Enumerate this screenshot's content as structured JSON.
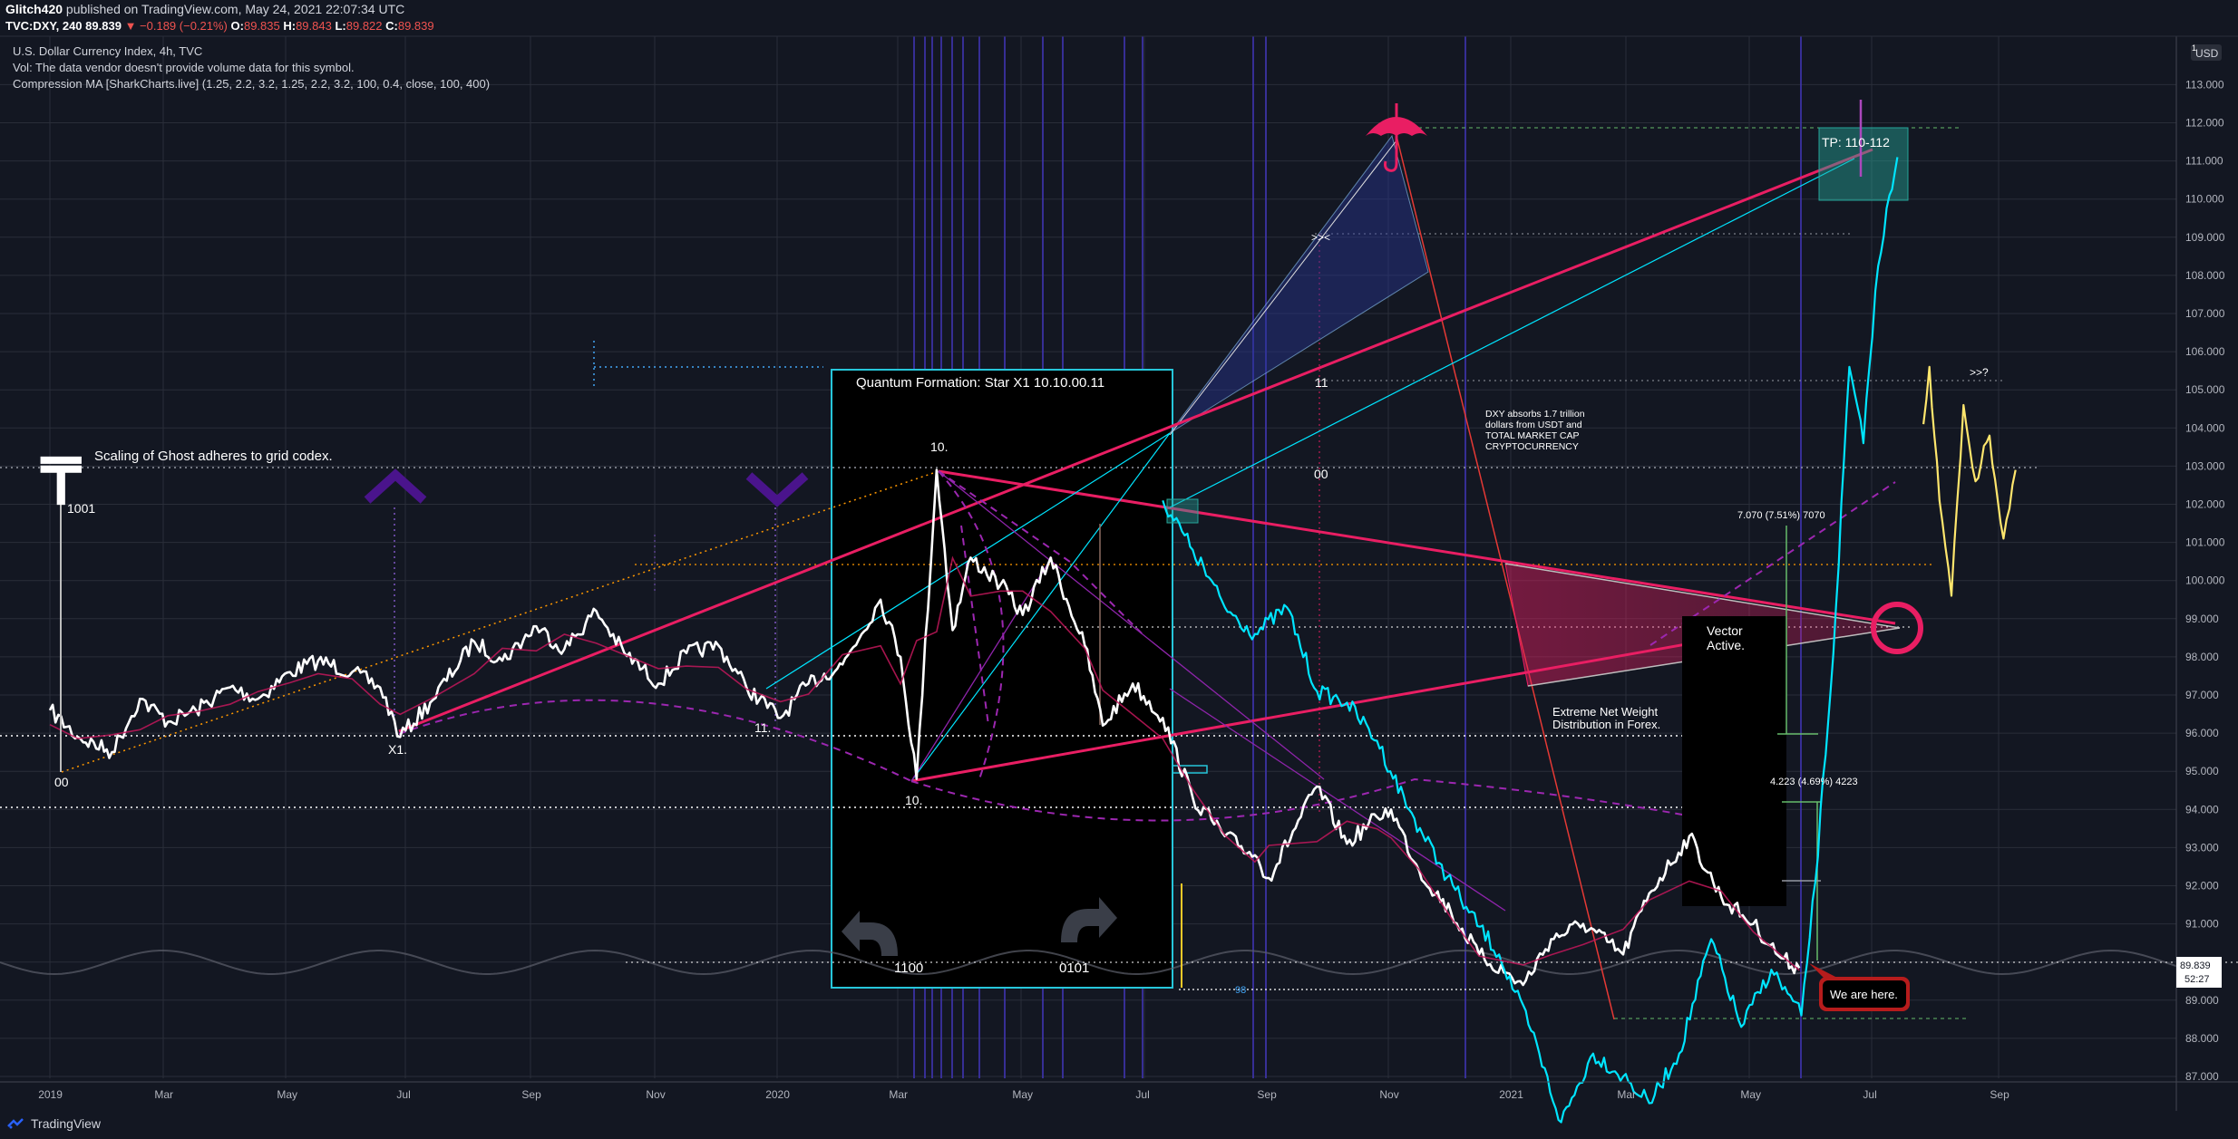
{
  "header": {
    "publisher": "Glitch420",
    "published_text": "published on TradingView.com, May 24, 2021 22:07:34 UTC",
    "symbol": "TVC:DXY, 240",
    "last": "89.839",
    "change": "▼ −0.189 (−0.21%)",
    "ohlc_o_label": "O:",
    "ohlc_o": "89.835",
    "ohlc_h_label": "H:",
    "ohlc_h": "89.843",
    "ohlc_l_label": "L:",
    "ohlc_l": "89.822",
    "ohlc_c_label": "C:",
    "ohlc_c": "89.839"
  },
  "indicators": {
    "title": "U.S. Dollar Currency Index, 4h, TVC",
    "vol": "Vol: The data vendor doesn't provide volume data for this symbol.",
    "cma": "Compression MA [SharkCharts.live] (1.25, 2.2, 3.2, 1.25, 2.2, 3.2, 100, 0.4, close, 100, 400)"
  },
  "price_axis": {
    "currency": "USD",
    "top_badge": "1",
    "last_price": "89.839",
    "countdown": "52:27"
  },
  "annotations": {
    "scaling": "Scaling of Ghost adheres to grid codex.",
    "label_1001": "1001",
    "label_00_left": "00",
    "label_x1": "X1.",
    "label_11_dot": "11.",
    "label_10_top": "10.",
    "label_10_bottom": "10.",
    "quantum": "Quantum Formation: Star X1 10.10.00.11",
    "label_1100": "1100",
    "label_0101": "0101",
    "label_98": "98",
    "label_chev": ">><",
    "label_11": "11",
    "label_00_mid": "00",
    "dxy_absorbs": [
      "DXY absorbs 1.7 trillion",
      "dollars from USDT and",
      "TOTAL MARKET CAP",
      "CRYPTOCURRENCY"
    ],
    "tp": "TP: 110-112",
    "measure_1": "7.070 (7.51%) 7070",
    "measure_2": "4.223 (4.69%) 4223",
    "vector": [
      "Vector",
      "Active."
    ],
    "extreme": [
      "Extreme Net Weight",
      "Distribution in Forex."
    ],
    "we_are_here": "We are here.",
    "question": ">>?"
  },
  "footer": {
    "brand": "TradingView"
  },
  "colors": {
    "background": "#131722",
    "price_line": "#ffffff",
    "overlay_line": "#00e5ff",
    "projection": "#ffe66d",
    "pink": "#e91e63",
    "purple": "#7b1fa2",
    "teal_box": "#1de9b6"
  },
  "chart_data": {
    "type": "line",
    "title": "U.S. Dollar Currency Index, 4h, TVC",
    "x_axis_labels": [
      "2019",
      "Mar",
      "May",
      "Jul",
      "Sep",
      "Nov",
      "2020",
      "Mar",
      "May",
      "Jul",
      "Sep",
      "Nov",
      "2021",
      "Mar",
      "May",
      "Jul",
      "Sep"
    ],
    "y_axis_ticks": [
      "113.000",
      "112.000",
      "111.000",
      "110.000",
      "109.000",
      "108.000",
      "107.000",
      "106.000",
      "105.000",
      "104.000",
      "103.000",
      "102.000",
      "101.000",
      "100.000",
      "99.000",
      "98.000",
      "97.000",
      "96.000",
      "95.000",
      "94.000",
      "93.000",
      "92.000",
      "91.000",
      "90.000",
      "89.000",
      "88.000",
      "87.000"
    ],
    "ylim": [
      86.9,
      114.0
    ],
    "grid": true,
    "series": [
      {
        "color": "#ffffff",
        "points": [
          [
            "2019-01-01",
            96.6
          ],
          [
            "2019-01-15",
            95.9
          ],
          [
            "2019-02-01",
            95.5
          ],
          [
            "2019-02-15",
            96.9
          ],
          [
            "2019-03-01",
            96.3
          ],
          [
            "2019-03-15",
            96.6
          ],
          [
            "2019-04-01",
            97.2
          ],
          [
            "2019-04-15",
            96.9
          ],
          [
            "2019-05-01",
            97.6
          ],
          [
            "2019-05-15",
            97.9
          ],
          [
            "2019-06-01",
            97.6
          ],
          [
            "2019-06-15",
            97.2
          ],
          [
            "2019-06-25",
            95.9
          ],
          [
            "2019-07-10",
            96.8
          ],
          [
            "2019-08-01",
            98.4
          ],
          [
            "2019-08-15",
            97.9
          ],
          [
            "2019-09-01",
            98.8
          ],
          [
            "2019-09-15",
            98.2
          ],
          [
            "2019-10-01",
            99.2
          ],
          [
            "2019-10-15",
            98.1
          ],
          [
            "2019-11-01",
            97.3
          ],
          [
            "2019-11-15",
            98.1
          ],
          [
            "2019-12-01",
            98.3
          ],
          [
            "2019-12-15",
            97.2
          ],
          [
            "2020-01-01",
            96.4
          ],
          [
            "2020-01-15",
            97.3
          ],
          [
            "2020-02-01",
            97.8
          ],
          [
            "2020-02-20",
            99.5
          ],
          [
            "2020-03-01",
            98.0
          ],
          [
            "2020-03-09",
            94.8
          ],
          [
            "2020-03-19",
            102.9
          ],
          [
            "2020-03-27",
            98.7
          ],
          [
            "2020-04-05",
            100.6
          ],
          [
            "2020-04-20",
            99.9
          ],
          [
            "2020-05-01",
            99.1
          ],
          [
            "2020-05-15",
            100.6
          ],
          [
            "2020-06-01",
            98.3
          ],
          [
            "2020-06-10",
            96.2
          ],
          [
            "2020-06-25",
            97.3
          ],
          [
            "2020-07-10",
            96.4
          ],
          [
            "2020-07-25",
            94.3
          ],
          [
            "2020-08-10",
            93.3
          ],
          [
            "2020-08-25",
            92.8
          ],
          [
            "2020-09-01",
            92.2
          ],
          [
            "2020-09-25",
            94.6
          ],
          [
            "2020-10-10",
            93.1
          ],
          [
            "2020-10-25",
            93.8
          ],
          [
            "2020-11-01",
            94.0
          ],
          [
            "2020-11-15",
            92.4
          ],
          [
            "2020-12-01",
            91.3
          ],
          [
            "2020-12-15",
            90.2
          ],
          [
            "2021-01-06",
            89.4
          ],
          [
            "2021-01-20",
            90.6
          ],
          [
            "2021-02-05",
            91.0
          ],
          [
            "2021-02-25",
            90.2
          ],
          [
            "2021-03-10",
            91.8
          ],
          [
            "2021-03-30",
            93.3
          ],
          [
            "2021-04-15",
            91.7
          ],
          [
            "2021-05-01",
            91.0
          ],
          [
            "2021-05-15",
            90.1
          ],
          [
            "2021-05-24",
            89.84
          ]
        ]
      },
      {
        "color": "#00e5ff",
        "points": [
          [
            "2020-07-10",
            102.1
          ],
          [
            "2020-07-25",
            100.8
          ],
          [
            "2020-08-10",
            99.3
          ],
          [
            "2020-08-25",
            98.6
          ],
          [
            "2020-09-10",
            99.3
          ],
          [
            "2020-09-25",
            97.1
          ],
          [
            "2020-10-10",
            96.8
          ],
          [
            "2020-10-25",
            95.8
          ],
          [
            "2020-11-10",
            94.0
          ],
          [
            "2020-11-25",
            92.6
          ],
          [
            "2020-12-10",
            91.3
          ],
          [
            "2020-12-25",
            90.2
          ],
          [
            "2021-01-10",
            88.2
          ],
          [
            "2021-01-25",
            85.8
          ],
          [
            "2021-02-10",
            87.6
          ],
          [
            "2021-02-25",
            87.0
          ],
          [
            "2021-03-10",
            86.3
          ],
          [
            "2021-03-25",
            87.6
          ],
          [
            "2021-04-10",
            90.6
          ],
          [
            "2021-04-25",
            88.3
          ],
          [
            "2021-05-10",
            89.8
          ],
          [
            "2021-05-25",
            88.6
          ],
          [
            "2021-06-01",
            92.1
          ],
          [
            "2021-06-10",
            98.1
          ],
          [
            "2021-06-18",
            105.6
          ],
          [
            "2021-06-25",
            103.6
          ],
          [
            "2021-07-01",
            107.6
          ],
          [
            "2021-07-08",
            110.1
          ],
          [
            "2021-07-12",
            111.1
          ]
        ]
      },
      {
        "color": "#ffe66d",
        "points": [
          [
            "2021-07-25",
            104.1
          ],
          [
            "2021-07-28",
            105.6
          ],
          [
            "2021-08-02",
            102.1
          ],
          [
            "2021-08-08",
            99.6
          ],
          [
            "2021-08-14",
            104.6
          ],
          [
            "2021-08-20",
            102.6
          ],
          [
            "2021-08-27",
            103.8
          ],
          [
            "2021-09-03",
            101.1
          ],
          [
            "2021-09-09",
            102.9
          ]
        ]
      }
    ]
  }
}
